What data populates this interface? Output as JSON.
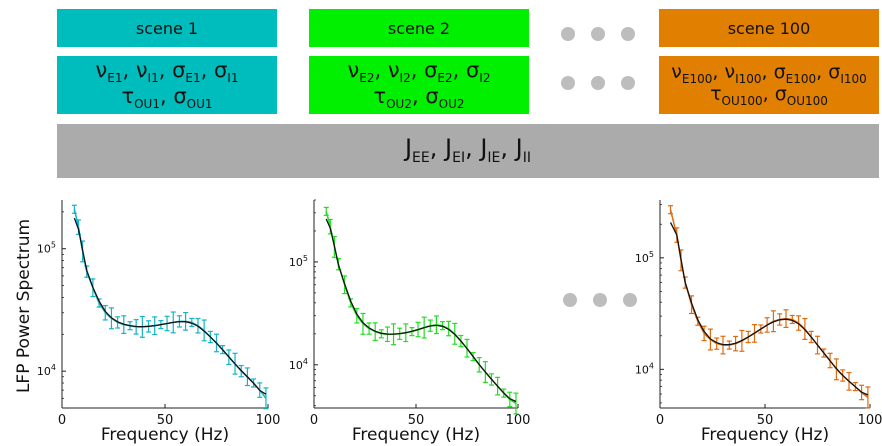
{
  "scenes": [
    {
      "title": "scene 1",
      "color": "#00bdbd",
      "series_color": "#12b4c6",
      "line1": "νE1, νI1, σE1, σI1",
      "line2": "τOU1, σOU1",
      "line1_parts": [
        [
          "ν",
          "E1"
        ],
        [
          "ν",
          "I1"
        ],
        [
          "σ",
          "E1"
        ],
        [
          "σ",
          "I1"
        ]
      ],
      "line2_parts": [
        [
          "τ",
          "OU1"
        ],
        [
          "σ",
          "OU1"
        ]
      ]
    },
    {
      "title": "scene 2",
      "color": "#00f000",
      "series_color": "#22dd22",
      "line1": "νE2, νI2, σE2, σI2",
      "line2": "τOU2, σOU2",
      "line1_parts": [
        [
          "ν",
          "E2"
        ],
        [
          "ν",
          "I2"
        ],
        [
          "σ",
          "E2"
        ],
        [
          "σ",
          "I2"
        ]
      ],
      "line2_parts": [
        [
          "τ",
          "OU2"
        ],
        [
          "σ",
          "OU2"
        ]
      ]
    },
    {
      "title": "scene 100",
      "color": "#e07f00",
      "series_color": "#e06a10",
      "line1": "νE100, νI100, σE100, σI100",
      "line2": "τOU100, σOU100",
      "line1_parts": [
        [
          "ν",
          "E100"
        ],
        [
          "ν",
          "I100"
        ],
        [
          "σ",
          "E100"
        ],
        [
          "σ",
          "I100"
        ]
      ],
      "line2_parts": [
        [
          "τ",
          "OU100"
        ],
        [
          "σ",
          "OU100"
        ]
      ]
    }
  ],
  "shared_params": {
    "label": "JEE, JEI, JIE, JII",
    "parts": [
      [
        "J",
        "EE"
      ],
      [
        "J",
        "EI"
      ],
      [
        "J",
        "IE"
      ],
      [
        "J",
        "II"
      ]
    ],
    "color": "#ababab"
  },
  "ylabel": "LFP Power Spectrum",
  "chart_data": [
    {
      "type": "line",
      "scale": "log-y",
      "xlabel": "Frequency (Hz)",
      "ylabel": "LFP Power Spectrum",
      "xlim": [
        0,
        100
      ],
      "xticks": [
        0,
        50,
        100
      ],
      "yticks": [
        "10^4",
        "10^5"
      ],
      "ylim": [
        5000,
        250000
      ],
      "series": [
        {
          "x": [
            6,
            8,
            10,
            12,
            15,
            18,
            21,
            24,
            27,
            30,
            33,
            36,
            39,
            42,
            45,
            48,
            51,
            54,
            57,
            60,
            63,
            66,
            69,
            72,
            75,
            78,
            81,
            84,
            87,
            90,
            93,
            96,
            99
          ],
          "values": [
            210000,
            150000,
            95000,
            65000,
            48000,
            36000,
            30000,
            27000,
            25000,
            24000,
            23500,
            23000,
            23000,
            23200,
            23500,
            24000,
            24500,
            25000,
            25500,
            25500,
            25000,
            23500,
            21500,
            19000,
            17000,
            15000,
            13000,
            11500,
            10000,
            9000,
            8000,
            7000,
            6000
          ]
        }
      ]
    },
    {
      "type": "line",
      "scale": "log-y",
      "xlabel": "Frequency (Hz)",
      "ylabel": "",
      "xlim": [
        0,
        100
      ],
      "xticks": [
        0,
        50,
        100
      ],
      "yticks": [
        "10^4",
        "10^5"
      ],
      "ylim": [
        3800,
        400000
      ],
      "series": [
        {
          "x": [
            6,
            8,
            10,
            12,
            15,
            18,
            21,
            24,
            27,
            30,
            33,
            36,
            39,
            42,
            45,
            48,
            51,
            54,
            57,
            60,
            63,
            66,
            69,
            72,
            75,
            78,
            81,
            84,
            87,
            90,
            93,
            96,
            99
          ],
          "values": [
            310000,
            220000,
            140000,
            95000,
            60000,
            40000,
            30000,
            25000,
            22500,
            21000,
            20000,
            19800,
            19800,
            20000,
            20500,
            21000,
            22000,
            23000,
            24000,
            24500,
            24000,
            22500,
            20000,
            17000,
            14500,
            12000,
            10000,
            8500,
            7200,
            6200,
            5300,
            4600,
            4200
          ]
        }
      ]
    },
    {
      "type": "line",
      "scale": "log-y",
      "xlabel": "Frequency (Hz)",
      "ylabel": "",
      "xlim": [
        0,
        100
      ],
      "xticks": [
        0,
        50,
        100
      ],
      "yticks": [
        "10^4",
        "10^5"
      ],
      "ylim": [
        4500,
        330000
      ],
      "series": [
        {
          "x": [
            5,
            8,
            10,
            12,
            15,
            18,
            21,
            24,
            27,
            30,
            33,
            36,
            39,
            42,
            45,
            48,
            51,
            54,
            57,
            60,
            63,
            66,
            69,
            72,
            75,
            78,
            81,
            84,
            87,
            90,
            93,
            96,
            99
          ],
          "values": [
            270000,
            160000,
            95000,
            60000,
            38000,
            27000,
            21000,
            18500,
            17000,
            16500,
            16500,
            17000,
            18000,
            19500,
            21000,
            23000,
            25000,
            27000,
            28000,
            28500,
            28000,
            26000,
            23000,
            19500,
            16500,
            14000,
            12000,
            10000,
            8800,
            7800,
            7000,
            6200,
            5600
          ]
        }
      ]
    }
  ]
}
